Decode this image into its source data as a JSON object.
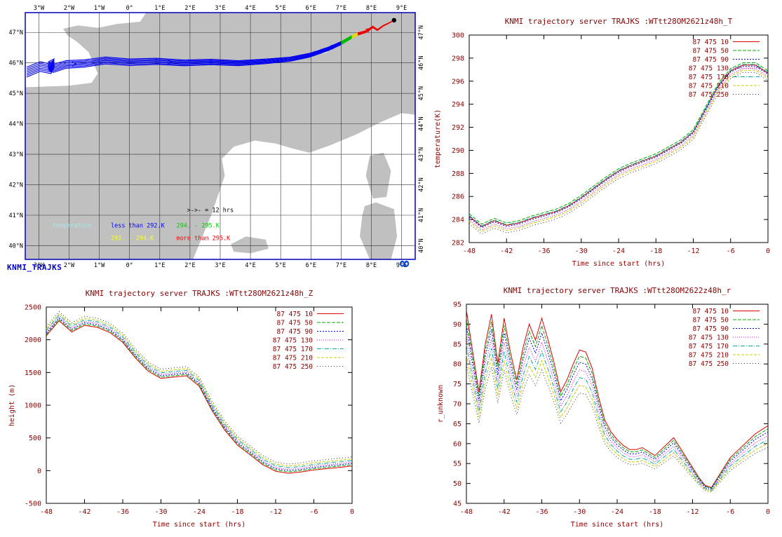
{
  "page_title": "KNMI trajectory server TRAJKS",
  "map": {
    "label": "KNMI_TRAJKS",
    "logo_glyph": "∞",
    "lon_ticks": [
      "3°W",
      "2°W",
      "1°W",
      "0°",
      "1°E",
      "2°E",
      "3°E",
      "4°E",
      "5°E",
      "6°E",
      "7°E",
      "8°E",
      "9°E"
    ],
    "lon_values": [
      -3,
      -2,
      -1,
      0,
      1,
      2,
      3,
      4,
      5,
      6,
      7,
      8,
      9
    ],
    "lat_ticks": [
      "47°N",
      "46°N",
      "45°N",
      "44°N",
      "43°N",
      "42°N",
      "41°N",
      "40°N"
    ],
    "lat_values": [
      47,
      46,
      45,
      44,
      43,
      42,
      41,
      40
    ],
    "extent": {
      "lon_min": -3.45,
      "lon_max": 9.45,
      "lat_min": 39.55,
      "lat_max": 47.65
    },
    "colors": {
      "land": "#c0c0c0",
      "sea": "#ffffff",
      "frame": "#0000bb",
      "grid": "#333333"
    },
    "legend": {
      "title": "temperature",
      "title_color": "#9feaf0",
      "marker_note": ">->- = 12 hrs",
      "items": [
        {
          "label": "less than 292.K",
          "color": "#0000ff"
        },
        {
          "label": "292. - 294.K",
          "color": "#ffff00"
        },
        {
          "label": "294. - 295.K",
          "color": "#00cc00"
        },
        {
          "label": "more than 295.K",
          "color": "#ff0000"
        }
      ]
    },
    "geometry": {
      "sea": [
        [
          [
            -3.45,
            47.65
          ],
          [
            0.55,
            47.65
          ],
          [
            0.35,
            47.35
          ],
          [
            -0.4,
            47.28
          ],
          [
            -1.05,
            47.15
          ],
          [
            -1.7,
            47.23
          ],
          [
            -2.2,
            47.12
          ],
          [
            -2.05,
            46.9
          ],
          [
            -1.75,
            46.7
          ],
          [
            -1.35,
            46.35
          ],
          [
            -1.2,
            46.0
          ],
          [
            -1.05,
            45.65
          ],
          [
            -1.25,
            45.35
          ],
          [
            -2.0,
            45.25
          ],
          [
            -3.45,
            45.2
          ]
        ],
        [
          [
            2.1,
            39.55
          ],
          [
            2.7,
            41.0
          ],
          [
            3.15,
            42.3
          ],
          [
            3.05,
            42.85
          ],
          [
            3.45,
            43.25
          ],
          [
            4.15,
            43.45
          ],
          [
            4.85,
            43.35
          ],
          [
            5.35,
            43.2
          ],
          [
            5.95,
            43.05
          ],
          [
            6.65,
            43.3
          ],
          [
            7.5,
            43.65
          ],
          [
            8.3,
            44.05
          ],
          [
            9.0,
            44.35
          ],
          [
            9.45,
            44.3
          ],
          [
            9.45,
            39.55
          ]
        ]
      ],
      "islands": [
        [
          [
            7.95,
            42.95
          ],
          [
            8.4,
            43.05
          ],
          [
            8.65,
            42.45
          ],
          [
            8.5,
            41.6
          ],
          [
            8.05,
            41.55
          ],
          [
            7.82,
            42.3
          ]
        ],
        [
          [
            7.7,
            41.0
          ],
          [
            7.78,
            41.3
          ],
          [
            8.15,
            41.42
          ],
          [
            8.75,
            41.2
          ],
          [
            8.85,
            40.3
          ],
          [
            8.65,
            39.55
          ],
          [
            7.95,
            39.55
          ],
          [
            7.62,
            40.3
          ]
        ],
        [
          [
            3.35,
            40.05
          ],
          [
            3.85,
            40.3
          ],
          [
            4.5,
            40.2
          ],
          [
            4.6,
            39.9
          ],
          [
            4.0,
            39.75
          ],
          [
            3.45,
            39.8
          ]
        ]
      ],
      "trajectory": {
        "base": [
          [
            -3.4,
            45.7
          ],
          [
            -2.95,
            45.88
          ],
          [
            -2.6,
            45.8
          ],
          [
            -2.5,
            45.98
          ],
          [
            -2.68,
            45.9
          ],
          [
            -2.52,
            45.82
          ],
          [
            -2.1,
            45.95
          ],
          [
            -1.5,
            45.98
          ],
          [
            -0.8,
            46.08
          ],
          [
            0.0,
            46.02
          ],
          [
            0.9,
            46.05
          ],
          [
            1.8,
            46.0
          ],
          [
            2.7,
            46.03
          ],
          [
            3.6,
            45.99
          ],
          [
            4.5,
            46.05
          ],
          [
            5.3,
            46.12
          ],
          [
            5.95,
            46.25
          ],
          [
            6.55,
            46.45
          ],
          [
            7.0,
            46.65
          ],
          [
            7.35,
            46.85
          ],
          [
            7.55,
            46.95
          ],
          [
            7.8,
            47.02
          ],
          [
            8.05,
            47.18
          ],
          [
            8.2,
            47.08
          ],
          [
            8.4,
            47.22
          ],
          [
            8.6,
            47.32
          ],
          [
            8.75,
            47.4
          ]
        ],
        "offsets": [
          -0.165,
          -0.11,
          -0.055,
          0,
          0.055,
          0.11,
          0.165
        ],
        "breaks": [
          {
            "from": 0,
            "to": 18,
            "color": "#0000ee"
          },
          {
            "from": 18,
            "to": 19,
            "color": "#00bb00"
          },
          {
            "from": 19,
            "to": 20,
            "color": "#dddd00"
          },
          {
            "from": 20,
            "to": 26,
            "color": "#ee0000"
          }
        ],
        "arrows": [
          {
            "i": 6,
            "color": "#0000ee"
          },
          {
            "i": 10,
            "color": "#0000ee"
          },
          {
            "i": 14,
            "color": "#0000ee"
          },
          {
            "i": 17,
            "color": "#0000ee"
          },
          {
            "i": 21,
            "color": "#ee0000"
          }
        ]
      }
    }
  },
  "chart_data": [
    {
      "id": "temperature",
      "type": "line",
      "title": "KNMI trajectory server TRAJKS :WTtt28OM2621z48h_T",
      "xlabel": "Time since start (hrs)",
      "ylabel": "temperature(K)",
      "xlim": [
        -48,
        0
      ],
      "ylim": [
        282,
        300
      ],
      "xticks": [
        -48,
        -42,
        -36,
        -30,
        -24,
        -18,
        -12,
        -6,
        0
      ],
      "yticks": [
        282,
        284,
        286,
        288,
        290,
        292,
        294,
        296,
        298,
        300
      ],
      "legend_position": "top-right-inside",
      "grid": false,
      "x": [
        -48,
        -46,
        -44,
        -42,
        -40,
        -38,
        -36,
        -34,
        -32,
        -30,
        -28,
        -26,
        -24,
        -22,
        -20,
        -18,
        -16,
        -14,
        -12,
        -10,
        -8,
        -6,
        -4,
        -2,
        0
      ],
      "base": [
        284.2,
        283.3,
        283.8,
        283.4,
        283.6,
        284.0,
        284.3,
        284.6,
        285.1,
        285.8,
        286.6,
        287.4,
        288.1,
        288.6,
        289.0,
        289.4,
        290.0,
        290.6,
        291.5,
        293.5,
        295.5,
        296.8,
        297.3,
        297.3,
        296.6
      ],
      "series": [
        {
          "name": "87 475 10",
          "color": "#dd0000",
          "dash": "",
          "offset": 0.1
        },
        {
          "name": "87 475 50",
          "color": "#00aa00",
          "dash": "5,2",
          "offset": 0.3
        },
        {
          "name": "87 475 90",
          "color": "#0000dd",
          "dash": "2,2",
          "offset": 0.0
        },
        {
          "name": "87 475 130",
          "color": "#dd00dd",
          "dash": "1,2",
          "offset": -0.2
        },
        {
          "name": "87 475 170",
          "color": "#00aaaa",
          "dash": "6,2,1,2",
          "offset": 0.15
        },
        {
          "name": "87 475 210",
          "color": "#cccc00",
          "dash": "4,2",
          "offset": -0.35
        },
        {
          "name": "87 475 250",
          "color": "#333333",
          "dash": "1,3",
          "offset": -0.55
        }
      ]
    },
    {
      "id": "height",
      "type": "line",
      "title": "KNMI trajectory server TRAJKS :WTtt28OM2621z48h_Z",
      "xlabel": "Time since start (hrs)",
      "ylabel": "height (m)",
      "xlim": [
        -48,
        0
      ],
      "ylim": [
        -500,
        2500
      ],
      "xticks": [
        -48,
        -42,
        -36,
        -30,
        -24,
        -18,
        -12,
        -6,
        0
      ],
      "yticks": [
        -500,
        0,
        500,
        1000,
        1500,
        2000,
        2500
      ],
      "legend_position": "top-right-inside",
      "grid": false,
      "x": [
        -48,
        -46,
        -44,
        -42,
        -40,
        -38,
        -36,
        -34,
        -32,
        -30,
        -28,
        -26,
        -24,
        -22,
        -20,
        -18,
        -16,
        -14,
        -12,
        -10,
        -8,
        -6,
        -4,
        -2,
        0
      ],
      "base": [
        2100,
        2330,
        2160,
        2260,
        2230,
        2150,
        2000,
        1760,
        1560,
        1450,
        1470,
        1490,
        1330,
        960,
        660,
        430,
        280,
        130,
        30,
        0,
        20,
        50,
        70,
        90,
        110
      ],
      "series": [
        {
          "name": "87 475 10",
          "color": "#dd0000",
          "dash": "",
          "offset": -40
        },
        {
          "name": "87 475 50",
          "color": "#00aa00",
          "dash": "5,2",
          "offset": -20
        },
        {
          "name": "87 475 90",
          "color": "#0000dd",
          "dash": "2,2",
          "offset": 0
        },
        {
          "name": "87 475 130",
          "color": "#dd00dd",
          "dash": "1,2",
          "offset": 20
        },
        {
          "name": "87 475 170",
          "color": "#00aaaa",
          "dash": "6,2,1,2",
          "offset": 45
        },
        {
          "name": "87 475 210",
          "color": "#cccc00",
          "dash": "4,2",
          "offset": 70
        },
        {
          "name": "87 475 250",
          "color": "#333333",
          "dash": "1,3",
          "offset": 100
        }
      ]
    },
    {
      "id": "r-unknown",
      "type": "line",
      "title": "KNMI trajectory server TRAJKS :WTtt28OM2622z48h_r",
      "xlabel": "Time since start (hrs)",
      "ylabel": "r_unknown",
      "xlim": [
        -48,
        0
      ],
      "ylim": [
        45,
        95
      ],
      "xticks": [
        -48,
        -42,
        -36,
        -30,
        -24,
        -18,
        -12,
        -6,
        0
      ],
      "yticks": [
        45,
        50,
        55,
        60,
        65,
        70,
        75,
        80,
        85,
        90,
        95
      ],
      "legend_position": "top-right-inside",
      "grid": false,
      "pivot": 45,
      "x": [
        -48,
        -47,
        -46,
        -45,
        -44,
        -43,
        -42,
        -41,
        -40,
        -39,
        -38,
        -37,
        -36,
        -35,
        -34,
        -33,
        -32,
        -31,
        -30,
        -29,
        -28,
        -27,
        -26,
        -25,
        -24,
        -23,
        -22,
        -21,
        -20,
        -19,
        -18,
        -17,
        -16,
        -15,
        -14,
        -13,
        -12,
        -11,
        -10,
        -9,
        -8,
        -7,
        -6,
        -5,
        -4,
        -3,
        -2,
        -1,
        0
      ],
      "base": [
        93.5,
        83,
        73,
        85,
        92.5,
        80,
        91.5,
        83,
        76,
        84,
        90,
        86,
        91.5,
        86,
        80,
        73,
        76,
        80,
        83.5,
        83,
        79,
        72,
        66,
        63,
        61,
        59.5,
        58.5,
        58.5,
        59,
        58,
        57,
        58.5,
        60,
        61.5,
        59,
        56.5,
        54,
        51.5,
        49.5,
        49,
        51.5,
        54,
        56.5,
        58,
        59.5,
        61,
        62.5,
        63.5,
        64.5
      ],
      "series": [
        {
          "name": "87 475 10",
          "color": "#dd0000",
          "dash": "",
          "factor": 1.0
        },
        {
          "name": "87 475 50",
          "color": "#00aa00",
          "dash": "5,2",
          "factor": 0.96
        },
        {
          "name": "87 475 90",
          "color": "#0000dd",
          "dash": "2,2",
          "factor": 0.92
        },
        {
          "name": "87 475 130",
          "color": "#dd00dd",
          "dash": "1,2",
          "factor": 0.87
        },
        {
          "name": "87 475 170",
          "color": "#00aaaa",
          "dash": "6,2,1,2",
          "factor": 0.82
        },
        {
          "name": "87 475 210",
          "color": "#cccc00",
          "dash": "4,2",
          "factor": 0.77
        },
        {
          "name": "87 475 250",
          "color": "#333333",
          "dash": "1,3",
          "factor": 0.72
        }
      ]
    }
  ]
}
